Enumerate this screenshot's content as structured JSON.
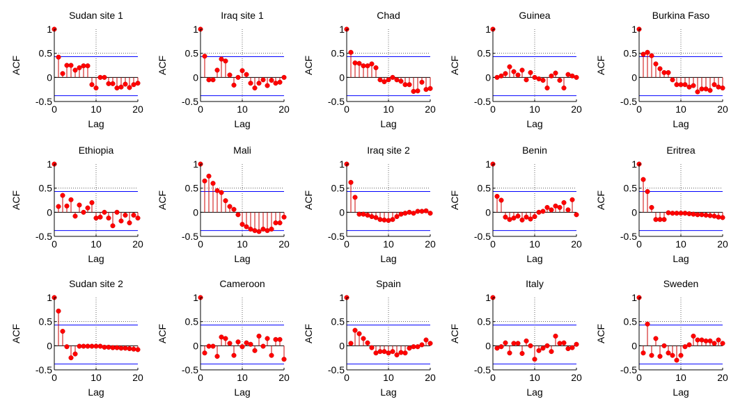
{
  "style": {
    "stem_color": "#cc0000",
    "marker_color": "#ff0000",
    "bound_color": "#0000ff",
    "grid_color": "#000000",
    "axis_color": "#000000"
  },
  "chart_data": [
    {
      "type": "stem",
      "title": "Sudan site 1",
      "xlabel": "Lag",
      "ylabel": "ACF",
      "xlim": [
        0,
        20
      ],
      "ylim": [
        -0.5,
        1
      ],
      "xticks": [
        "0",
        "10",
        "20"
      ],
      "yticks": [
        "-0.5",
        "0",
        "0.5",
        "1"
      ],
      "bounds": [
        0.43,
        -0.38
      ],
      "grid_x": 10,
      "grid_y": 0.5,
      "x": [
        0,
        1,
        2,
        3,
        4,
        5,
        6,
        7,
        8,
        9,
        10,
        11,
        12,
        13,
        14,
        15,
        16,
        17,
        18,
        19,
        20
      ],
      "values": [
        1,
        0.42,
        0.08,
        0.25,
        0.25,
        0.15,
        0.2,
        0.24,
        0.24,
        -0.15,
        -0.22,
        0,
        0,
        -0.13,
        -0.13,
        -0.22,
        -0.2,
        -0.14,
        -0.21,
        -0.15,
        -0.12
      ]
    },
    {
      "type": "stem",
      "title": "Iraq site 1",
      "xlabel": "Lag",
      "ylabel": "ACF",
      "xlim": [
        0,
        20
      ],
      "ylim": [
        -0.5,
        1
      ],
      "xticks": [
        "0",
        "10",
        "20"
      ],
      "yticks": [
        "-0.5",
        "0",
        "0.5",
        "1"
      ],
      "bounds": [
        0.43,
        -0.38
      ],
      "grid_x": 10,
      "grid_y": 0.5,
      "x": [
        0,
        1,
        2,
        3,
        4,
        5,
        6,
        7,
        8,
        9,
        10,
        11,
        12,
        13,
        14,
        15,
        16,
        17,
        18,
        19,
        20
      ],
      "values": [
        1,
        0.44,
        -0.05,
        -0.05,
        0.15,
        0.38,
        0.34,
        0.05,
        -0.16,
        0,
        0.14,
        0.06,
        -0.12,
        -0.22,
        -0.12,
        -0.05,
        -0.17,
        -0.06,
        -0.12,
        -0.1,
        0
      ]
    },
    {
      "type": "stem",
      "title": "Chad",
      "xlabel": "Lag",
      "ylabel": "ACF",
      "xlim": [
        0,
        20
      ],
      "ylim": [
        -0.5,
        1
      ],
      "xticks": [
        "0",
        "10",
        "20"
      ],
      "yticks": [
        "-0.5",
        "0",
        "0.5",
        "1"
      ],
      "bounds": [
        0.43,
        -0.38
      ],
      "grid_x": 10,
      "grid_y": 0.5,
      "x": [
        0,
        1,
        2,
        3,
        4,
        5,
        6,
        7,
        8,
        9,
        10,
        11,
        12,
        13,
        14,
        15,
        16,
        17,
        18,
        19,
        20
      ],
      "values": [
        1,
        0.52,
        0.3,
        0.29,
        0.24,
        0.24,
        0.28,
        0.2,
        -0.05,
        -0.09,
        -0.05,
        0,
        -0.05,
        -0.08,
        -0.15,
        -0.15,
        -0.29,
        -0.28,
        -0.1,
        -0.25,
        -0.23
      ]
    },
    {
      "type": "stem",
      "title": "Guinea",
      "xlabel": "Lag",
      "ylabel": "ACF",
      "xlim": [
        0,
        20
      ],
      "ylim": [
        -0.5,
        1
      ],
      "xticks": [
        "0",
        "10",
        "20"
      ],
      "yticks": [
        "-0.5",
        "0",
        "0.5",
        "1"
      ],
      "bounds": [
        0.43,
        -0.38
      ],
      "grid_x": 10,
      "grid_y": 0.5,
      "x": [
        0,
        1,
        2,
        3,
        4,
        5,
        6,
        7,
        8,
        9,
        10,
        11,
        12,
        13,
        14,
        15,
        16,
        17,
        18,
        19,
        20
      ],
      "values": [
        1,
        0,
        0.03,
        0.08,
        0.22,
        0.12,
        0.05,
        0.15,
        -0.05,
        0.1,
        0,
        -0.03,
        -0.06,
        -0.22,
        0.03,
        0.09,
        -0.06,
        -0.22,
        0.06,
        0.03,
        0
      ]
    },
    {
      "type": "stem",
      "title": "Burkina Faso",
      "xlabel": "Lag",
      "ylabel": "ACF",
      "xlim": [
        0,
        20
      ],
      "ylim": [
        -0.5,
        1
      ],
      "xticks": [
        "0",
        "10",
        "20"
      ],
      "yticks": [
        "-0.5",
        "0",
        "0.5",
        "1"
      ],
      "bounds": [
        0.43,
        -0.38
      ],
      "grid_x": 10,
      "grid_y": 0.5,
      "x": [
        0,
        1,
        2,
        3,
        4,
        5,
        6,
        7,
        8,
        9,
        10,
        11,
        12,
        13,
        14,
        15,
        16,
        17,
        18,
        19,
        20
      ],
      "values": [
        1,
        0.48,
        0.52,
        0.45,
        0.28,
        0.18,
        0.1,
        0.1,
        -0.05,
        -0.15,
        -0.15,
        -0.15,
        -0.2,
        -0.17,
        -0.3,
        -0.24,
        -0.24,
        -0.27,
        -0.15,
        -0.2,
        -0.22
      ]
    },
    {
      "type": "stem",
      "title": "Ethiopia",
      "xlabel": "Lag",
      "ylabel": "ACF",
      "xlim": [
        0,
        20
      ],
      "ylim": [
        -0.5,
        1
      ],
      "xticks": [
        "0",
        "10",
        "20"
      ],
      "yticks": [
        "-0.5",
        "0",
        "0.5",
        "1"
      ],
      "bounds": [
        0.43,
        -0.38
      ],
      "grid_x": 10,
      "grid_y": 0.5,
      "x": [
        0,
        1,
        2,
        3,
        4,
        5,
        6,
        7,
        8,
        9,
        10,
        11,
        12,
        13,
        14,
        15,
        16,
        17,
        18,
        19,
        20
      ],
      "values": [
        1,
        0.12,
        0.35,
        0.13,
        0.26,
        -0.08,
        0.15,
        0,
        0.09,
        0.2,
        -0.12,
        -0.1,
        0,
        -0.12,
        -0.28,
        0,
        -0.18,
        -0.06,
        -0.22,
        -0.06,
        -0.12
      ]
    },
    {
      "type": "stem",
      "title": "Mali",
      "xlabel": "Lag",
      "ylabel": "ACF",
      "xlim": [
        0,
        20
      ],
      "ylim": [
        -0.5,
        1
      ],
      "xticks": [
        "0",
        "10",
        "20"
      ],
      "yticks": [
        "-0.5",
        "0",
        "0.5",
        "1"
      ],
      "bounds": [
        0.43,
        -0.38
      ],
      "grid_x": 10,
      "grid_y": 0.5,
      "x": [
        0,
        1,
        2,
        3,
        4,
        5,
        6,
        7,
        8,
        9,
        10,
        11,
        12,
        13,
        14,
        15,
        16,
        17,
        18,
        19,
        20
      ],
      "values": [
        1,
        0.65,
        0.75,
        0.6,
        0.45,
        0.41,
        0.24,
        0.12,
        0.06,
        -0.05,
        -0.25,
        -0.3,
        -0.35,
        -0.38,
        -0.4,
        -0.35,
        -0.38,
        -0.35,
        -0.22,
        -0.22,
        -0.1
      ]
    },
    {
      "type": "stem",
      "title": "Iraq site 2",
      "xlabel": "Lag",
      "ylabel": "ACF",
      "xlim": [
        0,
        20
      ],
      "ylim": [
        -0.5,
        1
      ],
      "xticks": [
        "0",
        "10",
        "20"
      ],
      "yticks": [
        "-0.5",
        "0",
        "0.5",
        "1"
      ],
      "bounds": [
        0.43,
        -0.38
      ],
      "grid_x": 10,
      "grid_y": 0.5,
      "x": [
        0,
        1,
        2,
        3,
        4,
        5,
        6,
        7,
        8,
        9,
        10,
        11,
        12,
        13,
        14,
        15,
        16,
        17,
        18,
        19,
        20
      ],
      "values": [
        1,
        0.62,
        0.31,
        -0.04,
        -0.04,
        -0.06,
        -0.09,
        -0.11,
        -0.15,
        -0.16,
        -0.17,
        -0.15,
        -0.09,
        -0.04,
        -0.02,
        0,
        -0.02,
        0.02,
        0.02,
        0.03,
        -0.02
      ]
    },
    {
      "type": "stem",
      "title": "Benin",
      "xlabel": "Lag",
      "ylabel": "ACF",
      "xlim": [
        0,
        20
      ],
      "ylim": [
        -0.5,
        1
      ],
      "xticks": [
        "0",
        "10",
        "20"
      ],
      "yticks": [
        "-0.5",
        "0",
        "0.5",
        "1"
      ],
      "bounds": [
        0.43,
        -0.38
      ],
      "grid_x": 10,
      "grid_y": 0.5,
      "x": [
        0,
        1,
        2,
        3,
        4,
        5,
        6,
        7,
        8,
        9,
        10,
        11,
        12,
        13,
        14,
        15,
        16,
        17,
        18,
        19,
        20
      ],
      "values": [
        1,
        0.33,
        0.25,
        -0.1,
        -0.15,
        -0.12,
        -0.08,
        -0.16,
        -0.1,
        -0.14,
        -0.09,
        0,
        0.02,
        0.1,
        0.05,
        0.13,
        0.1,
        0.2,
        0.05,
        0.26,
        -0.05
      ]
    },
    {
      "type": "stem",
      "title": "Eritrea",
      "xlabel": "Lag",
      "ylabel": "ACF",
      "xlim": [
        0,
        20
      ],
      "ylim": [
        -0.5,
        1
      ],
      "xticks": [
        "0",
        "10",
        "20"
      ],
      "yticks": [
        "-0.5",
        "0",
        "0.5",
        "1"
      ],
      "bounds": [
        0.43,
        -0.38
      ],
      "grid_x": 10,
      "grid_y": 0.5,
      "x": [
        0,
        1,
        2,
        3,
        4,
        5,
        6,
        7,
        8,
        9,
        10,
        11,
        12,
        13,
        14,
        15,
        16,
        17,
        18,
        19,
        20
      ],
      "values": [
        1,
        0.68,
        0.43,
        0.1,
        -0.15,
        -0.15,
        -0.15,
        -0.01,
        -0.02,
        -0.02,
        -0.02,
        -0.02,
        -0.03,
        -0.04,
        -0.05,
        -0.05,
        -0.06,
        -0.07,
        -0.08,
        -0.1,
        -0.11
      ]
    },
    {
      "type": "stem",
      "title": "Sudan site 2",
      "xlabel": "Lag",
      "ylabel": "ACF",
      "xlim": [
        0,
        20
      ],
      "ylim": [
        -0.5,
        1
      ],
      "xticks": [
        "0",
        "10",
        "20"
      ],
      "yticks": [
        "-0.5",
        "0",
        "0.5",
        "1"
      ],
      "bounds": [
        0.43,
        -0.38
      ],
      "grid_x": 10,
      "grid_y": 0.5,
      "x": [
        0,
        1,
        2,
        3,
        4,
        5,
        6,
        7,
        8,
        9,
        10,
        11,
        12,
        13,
        14,
        15,
        16,
        17,
        18,
        19,
        20
      ],
      "values": [
        1,
        0.72,
        0.3,
        -0.02,
        -0.25,
        -0.17,
        -0.01,
        -0.01,
        -0.01,
        -0.01,
        -0.01,
        -0.01,
        -0.03,
        -0.03,
        -0.04,
        -0.04,
        -0.05,
        -0.05,
        -0.06,
        -0.07,
        -0.08
      ]
    },
    {
      "type": "stem",
      "title": "Cameroon",
      "xlabel": "Lag",
      "ylabel": "ACF",
      "xlim": [
        0,
        20
      ],
      "ylim": [
        -0.5,
        1
      ],
      "xticks": [
        "0",
        "10",
        "20"
      ],
      "yticks": [
        "-0.5",
        "0",
        "0.5",
        "1"
      ],
      "bounds": [
        0.43,
        -0.38
      ],
      "grid_x": 10,
      "grid_y": 0.5,
      "x": [
        0,
        1,
        2,
        3,
        4,
        5,
        6,
        7,
        8,
        9,
        10,
        11,
        12,
        13,
        14,
        15,
        16,
        17,
        18,
        19,
        20
      ],
      "values": [
        1,
        -0.15,
        -0.01,
        -0.01,
        -0.22,
        0.18,
        0.15,
        0.05,
        -0.2,
        0.08,
        -0.02,
        0.06,
        0.03,
        -0.1,
        0.2,
        -0.01,
        0.15,
        -0.2,
        0.13,
        0.13,
        -0.28
      ]
    },
    {
      "type": "stem",
      "title": "Spain",
      "xlabel": "Lag",
      "ylabel": "ACF",
      "xlim": [
        0,
        20
      ],
      "ylim": [
        -0.5,
        1
      ],
      "xticks": [
        "0",
        "10",
        "20"
      ],
      "yticks": [
        "-0.5",
        "0",
        "0.5",
        "1"
      ],
      "bounds": [
        0.43,
        -0.38
      ],
      "grid_x": 10,
      "grid_y": 0.5,
      "x": [
        0,
        1,
        2,
        3,
        4,
        5,
        6,
        7,
        8,
        9,
        10,
        11,
        12,
        13,
        14,
        15,
        16,
        17,
        18,
        19,
        20
      ],
      "values": [
        1,
        0.05,
        0.32,
        0.25,
        0.15,
        0.06,
        -0.04,
        -0.15,
        -0.12,
        -0.12,
        -0.15,
        -0.12,
        -0.19,
        -0.14,
        -0.15,
        -0.05,
        -0.02,
        -0.02,
        0.02,
        0.12,
        0.05
      ]
    },
    {
      "type": "stem",
      "title": "Italy",
      "xlabel": "Lag",
      "ylabel": "ACF",
      "xlim": [
        0,
        20
      ],
      "ylim": [
        -0.5,
        1
      ],
      "xticks": [
        "0",
        "10",
        "20"
      ],
      "yticks": [
        "-0.5",
        "0",
        "0.5",
        "1"
      ],
      "bounds": [
        0.43,
        -0.38
      ],
      "grid_x": 10,
      "grid_y": 0.5,
      "x": [
        0,
        1,
        2,
        3,
        4,
        5,
        6,
        7,
        8,
        9,
        10,
        11,
        12,
        13,
        14,
        15,
        16,
        17,
        18,
        19,
        20
      ],
      "values": [
        1,
        -0.05,
        -0.02,
        0.06,
        -0.15,
        0.05,
        0.05,
        -0.16,
        0.1,
        0,
        -0.28,
        -0.1,
        -0.05,
        0,
        -0.12,
        0.2,
        0.05,
        0.06,
        -0.06,
        -0.04,
        0.03
      ]
    },
    {
      "type": "stem",
      "title": "Sweden",
      "xlabel": "Lag",
      "ylabel": "ACF",
      "xlim": [
        0,
        20
      ],
      "ylim": [
        -0.5,
        1
      ],
      "xticks": [
        "0",
        "10",
        "20"
      ],
      "yticks": [
        "-0.5",
        "0",
        "0.5",
        "1"
      ],
      "bounds": [
        0.43,
        -0.38
      ],
      "grid_x": 10,
      "grid_y": 0.5,
      "x": [
        0,
        1,
        2,
        3,
        4,
        5,
        6,
        7,
        8,
        9,
        10,
        11,
        12,
        13,
        14,
        15,
        16,
        17,
        18,
        19,
        20
      ],
      "values": [
        1,
        -0.15,
        0.45,
        -0.2,
        0.15,
        -0.22,
        0,
        -0.15,
        -0.2,
        -0.3,
        -0.2,
        -0.02,
        0.02,
        0.2,
        0.12,
        0.12,
        0.1,
        0.1,
        0.05,
        0.12,
        0.05
      ]
    }
  ]
}
